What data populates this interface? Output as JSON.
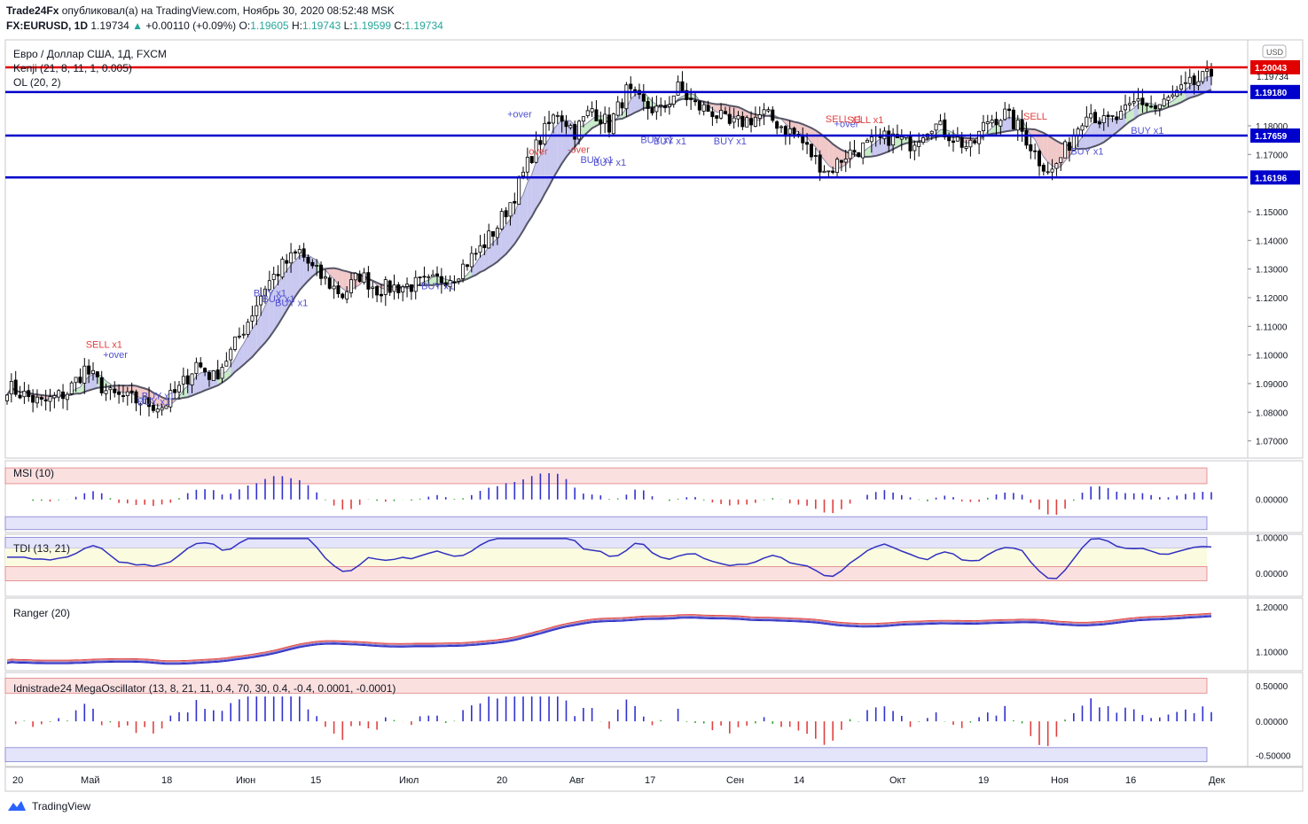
{
  "header": {
    "publisher": "Trade24Fx",
    "published_text": " опубликовал(а) на TradingView.com, Ноябрь 30, 2020 08:52:48 MSK",
    "symbol": "FX:EURUSD, 1D",
    "last": "1.19734",
    "change": "+0.00110 (+0.09%)",
    "o_label": "O:",
    "o": "1.19605",
    "h_label": "H:",
    "h": "1.19743",
    "l_label": "L:",
    "l": "1.19599",
    "c_label": "C:",
    "c": "1.19734"
  },
  "legend": {
    "title": "Евро / Доллар США, 1Д, FXCM",
    "kenji": "Kenji (21, 8, 11, 1, 0.005)",
    "ol": "OL (20, 2)",
    "currency": "USD"
  },
  "panes": {
    "msi": "MSI (10)",
    "tdi": "TDI (13, 21)",
    "ranger": "Ranger (20)",
    "mega": "Idnistrade24 MegaOscillator (13, 8, 21, 11, 0.4, 70, 30, 0.4, -0.4, 0.0001, -0.0001)"
  },
  "footer": {
    "brand": "TradingView"
  },
  "colors": {
    "bull": "#ffffff",
    "bear": "#000000",
    "line_red": "#e00000",
    "line_blue": "#0000cc",
    "ma_dark": "#555566",
    "fill_blue": "#c8c8f0",
    "fill_green": "#c8ecc8",
    "fill_red": "#f0c8c8",
    "osc_blue": "#3030d0",
    "osc_red": "#e04040",
    "osc_green": "#30a030"
  },
  "chart_data": {
    "type": "candlestick",
    "symbol": "EURUSD",
    "timeframe": "1D",
    "ylim": [
      1.064,
      1.21
    ],
    "y_ticks": [
      "1.18000",
      "1.17000",
      "1.15000",
      "1.14000",
      "1.13000",
      "1.12000",
      "1.11000",
      "1.10000",
      "1.09000",
      "1.08000",
      "1.07000"
    ],
    "x_ticks": [
      "20",
      "Май",
      "18",
      "Июн",
      "15",
      "Июл",
      "20",
      "Авг",
      "17",
      "Сен",
      "14",
      "Окт",
      "19",
      "Ноя",
      "16",
      "Дек"
    ],
    "levels": [
      {
        "value": 1.20043,
        "label": "1.20043",
        "color": "#e00000"
      },
      {
        "value": 1.1918,
        "label": "1.19180",
        "color": "#0000cc"
      },
      {
        "value": 1.17659,
        "label": "1.17659",
        "color": "#0000cc"
      },
      {
        "value": 1.16196,
        "label": "1.16196",
        "color": "#0000cc"
      }
    ],
    "last_price": {
      "value": 1.19734,
      "label": "1.19734"
    },
    "close_anchors": [
      [
        0,
        1.089
      ],
      [
        8,
        1.083
      ],
      [
        14,
        1.087
      ],
      [
        18,
        1.095
      ],
      [
        24,
        1.086
      ],
      [
        30,
        1.084
      ],
      [
        36,
        1.082
      ],
      [
        40,
        1.088
      ],
      [
        44,
        1.097
      ],
      [
        48,
        1.092
      ],
      [
        52,
        1.101
      ],
      [
        56,
        1.112
      ],
      [
        60,
        1.124
      ],
      [
        64,
        1.131
      ],
      [
        68,
        1.136
      ],
      [
        71,
        1.13
      ],
      [
        74,
        1.126
      ],
      [
        78,
        1.121
      ],
      [
        82,
        1.128
      ],
      [
        86,
        1.123
      ],
      [
        92,
        1.124
      ],
      [
        98,
        1.125
      ],
      [
        104,
        1.128
      ],
      [
        110,
        1.137
      ],
      [
        114,
        1.145
      ],
      [
        118,
        1.156
      ],
      [
        122,
        1.17
      ],
      [
        125,
        1.178
      ],
      [
        128,
        1.185
      ],
      [
        132,
        1.178
      ],
      [
        136,
        1.186
      ],
      [
        140,
        1.18
      ],
      [
        144,
        1.192
      ],
      [
        148,
        1.187
      ],
      [
        152,
        1.185
      ],
      [
        156,
        1.193
      ],
      [
        160,
        1.187
      ],
      [
        164,
        1.185
      ],
      [
        168,
        1.18
      ],
      [
        172,
        1.182
      ],
      [
        176,
        1.184
      ],
      [
        180,
        1.18
      ],
      [
        184,
        1.176
      ],
      [
        188,
        1.168
      ],
      [
        191,
        1.164
      ],
      [
        195,
        1.17
      ],
      [
        200,
        1.173
      ],
      [
        205,
        1.176
      ],
      [
        210,
        1.174
      ],
      [
        215,
        1.181
      ],
      [
        220,
        1.176
      ],
      [
        224,
        1.172
      ],
      [
        228,
        1.182
      ],
      [
        232,
        1.184
      ],
      [
        236,
        1.178
      ],
      [
        240,
        1.168
      ],
      [
        243,
        1.164
      ],
      [
        247,
        1.174
      ],
      [
        251,
        1.186
      ],
      [
        255,
        1.181
      ],
      [
        259,
        1.183
      ],
      [
        263,
        1.189
      ],
      [
        267,
        1.186
      ],
      [
        271,
        1.19
      ],
      [
        275,
        1.194
      ],
      [
        279,
        1.197
      ]
    ],
    "signals": [
      {
        "text": "SELL x1",
        "color": "#e04040",
        "bar": 22,
        "price": 1.1025
      },
      {
        "text": "+over",
        "color": "#5050d0",
        "bar": 26,
        "price": 1.099
      },
      {
        "text": "BUY x1",
        "color": "#5050d0",
        "bar": 34,
        "price": 1.0825
      },
      {
        "text": "BUY x1",
        "color": "#5050d0",
        "bar": 35,
        "price": 1.0845
      },
      {
        "text": "BUY x1",
        "color": "#5050d0",
        "bar": 61,
        "price": 1.1205
      },
      {
        "text": "BUY x1",
        "color": "#5050d0",
        "bar": 63,
        "price": 1.1185
      },
      {
        "text": "BUY x1",
        "color": "#5050d0",
        "bar": 66,
        "price": 1.117
      },
      {
        "text": "BUY x1",
        "color": "#5050d0",
        "bar": 100,
        "price": 1.123
      },
      {
        "text": "+over",
        "color": "#5050d0",
        "bar": 120,
        "price": 1.183
      },
      {
        "text": "over",
        "color": "#e04040",
        "bar": 125,
        "price": 1.17
      },
      {
        "text": "-over",
        "color": "#e04040",
        "bar": 134,
        "price": 1.1705
      },
      {
        "text": "BUY x1",
        "color": "#5050d0",
        "bar": 137,
        "price": 1.167
      },
      {
        "text": "BUY x1",
        "color": "#5050d0",
        "bar": 140,
        "price": 1.166
      },
      {
        "text": "BUY x1",
        "color": "#5050d0",
        "bar": 151,
        "price": 1.174
      },
      {
        "text": "BUY x1",
        "color": "#5050d0",
        "bar": 154,
        "price": 1.1735
      },
      {
        "text": "BUY x1",
        "color": "#5050d0",
        "bar": 168,
        "price": 1.1735
      },
      {
        "text": "SELL x1",
        "color": "#e04040",
        "bar": 194,
        "price": 1.1812
      },
      {
        "text": "+over",
        "color": "#5050d0",
        "bar": 196,
        "price": 1.1795
      },
      {
        "text": "SELL x1",
        "color": "#e04040",
        "bar": 199,
        "price": 1.181
      },
      {
        "text": "SELL",
        "color": "#e04040",
        "bar": 240,
        "price": 1.1822
      },
      {
        "text": "BUY x1",
        "color": "#5050d0",
        "bar": 251,
        "price": 1.17
      },
      {
        "text": "BUY x1",
        "color": "#5050d0",
        "bar": 265,
        "price": 1.1772
      }
    ],
    "msi": {
      "ticks": [
        "0.00000"
      ]
    },
    "tdi": {
      "ticks": [
        "1.00000",
        "0.00000"
      ]
    },
    "ranger": {
      "ticks": [
        "1.20000",
        "1.10000"
      ]
    },
    "mega": {
      "ticks": [
        "0.50000",
        "0.00000",
        "-0.50000"
      ]
    }
  }
}
